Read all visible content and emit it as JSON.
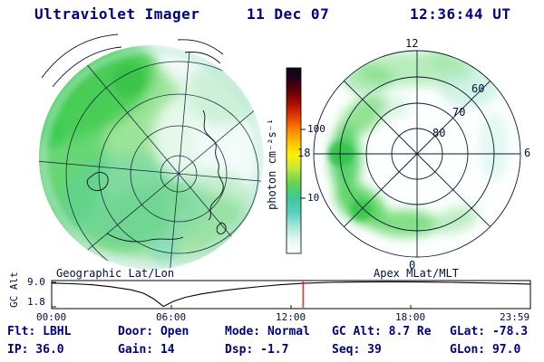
{
  "header": {
    "instrument": "Ultraviolet Imager",
    "date": "11 Dec 07",
    "time": "12:36:44 UT"
  },
  "left_panel": {
    "label": "Geographic Lat/Lon"
  },
  "right_panel": {
    "label": "Apex MLat/MLT",
    "mlt_top": "12",
    "mlt_left": "18",
    "mlt_right": "6",
    "mlt_bottom": "0",
    "mlat_outer": "60",
    "mlat_mid": "70",
    "mlat_inner": "80"
  },
  "colorbar": {
    "label": "photon cm⁻²s⁻¹",
    "tick_upper": "100",
    "tick_lower": "10",
    "stops": [
      {
        "o": "0%",
        "c": "#0a0a14"
      },
      {
        "o": "6%",
        "c": "#26001c"
      },
      {
        "o": "13%",
        "c": "#660008"
      },
      {
        "o": "20%",
        "c": "#b01000"
      },
      {
        "o": "27%",
        "c": "#e64400"
      },
      {
        "o": "34%",
        "c": "#ff8800"
      },
      {
        "o": "41%",
        "c": "#ffc800"
      },
      {
        "o": "47%",
        "c": "#fdf100"
      },
      {
        "o": "54%",
        "c": "#c4e83c"
      },
      {
        "o": "62%",
        "c": "#66d44e"
      },
      {
        "o": "70%",
        "c": "#3dc996"
      },
      {
        "o": "78%",
        "c": "#55cfc0"
      },
      {
        "o": "86%",
        "c": "#abe8dc"
      },
      {
        "o": "93%",
        "c": "#e4f8f2"
      },
      {
        "o": "100%",
        "c": "#ffffff"
      }
    ]
  },
  "strip_chart": {
    "ylabel": "GC Alt",
    "ytick_top": "9.0",
    "ytick_bottom": "1.8",
    "xticks": [
      "00:00",
      "06:00",
      "12:00",
      "18:00",
      "23:59"
    ]
  },
  "status_row1": [
    "Flt: LBHL",
    "Door: Open",
    "Mode: Normal",
    "GC Alt: 8.7 Re",
    "GLat: -78.3"
  ],
  "status_row2": [
    "IP: 36.0",
    "Gain: 14",
    "Dsp: -1.7",
    "Seq: 39",
    "GLon: 97.0"
  ],
  "colors": {
    "text": "#000080",
    "marker": "#ff0000",
    "accent_green": "#4ccf55"
  },
  "chart_data": [
    {
      "type": "heatmap",
      "title": "Geographic Lat/Lon",
      "note": "Auroral FUV image disk over a southern-hemisphere geographic lat/lon grid with coastlines; broad green emission (~10-40 photon cm-2 s-1) over most of disk, brightest arc along upper-left limb, paler white/cyan region center-right",
      "colorbar": {
        "label": "photon cm⁻²s⁻¹",
        "scale": "log",
        "ticks": [
          10,
          100
        ]
      }
    },
    {
      "type": "heatmap",
      "title": "Apex MLat/MLT",
      "rings_mlat": [
        80,
        70,
        60
      ],
      "clock_mlt": [
        12,
        18,
        6,
        0
      ],
      "note": "Auroral oval band mainly between 60 and 80 MLat across dusk-to-midnight (left/bottom) sectors, weaker patchy emission near noon (top)"
    },
    {
      "type": "line",
      "title": "GC Alt vs UT",
      "ylabel": "GC Alt",
      "yunits": "Re",
      "ylim": [
        1.8,
        9.0
      ],
      "xlim_hours": [
        0,
        24
      ],
      "xticks": [
        "00:00",
        "06:00",
        "12:00",
        "18:00",
        "23:59"
      ],
      "x_hours": [
        0,
        1,
        2,
        3,
        4,
        4.6,
        5.1,
        5.6,
        6.1,
        6.7,
        7.5,
        8.5,
        9.5,
        10.5,
        11.5,
        12.6,
        14,
        15.5,
        17,
        18.5,
        20,
        22,
        24
      ],
      "y_re": [
        8.8,
        8.6,
        8.3,
        7.7,
        6.8,
        5.8,
        4.2,
        1.9,
        3.4,
        4.6,
        5.6,
        6.5,
        7.2,
        7.8,
        8.3,
        8.7,
        9.0,
        9.1,
        9.15,
        9.1,
        9.0,
        8.8,
        8.5
      ],
      "marker_hour": 12.6,
      "marker_color": "#ff0000"
    }
  ]
}
